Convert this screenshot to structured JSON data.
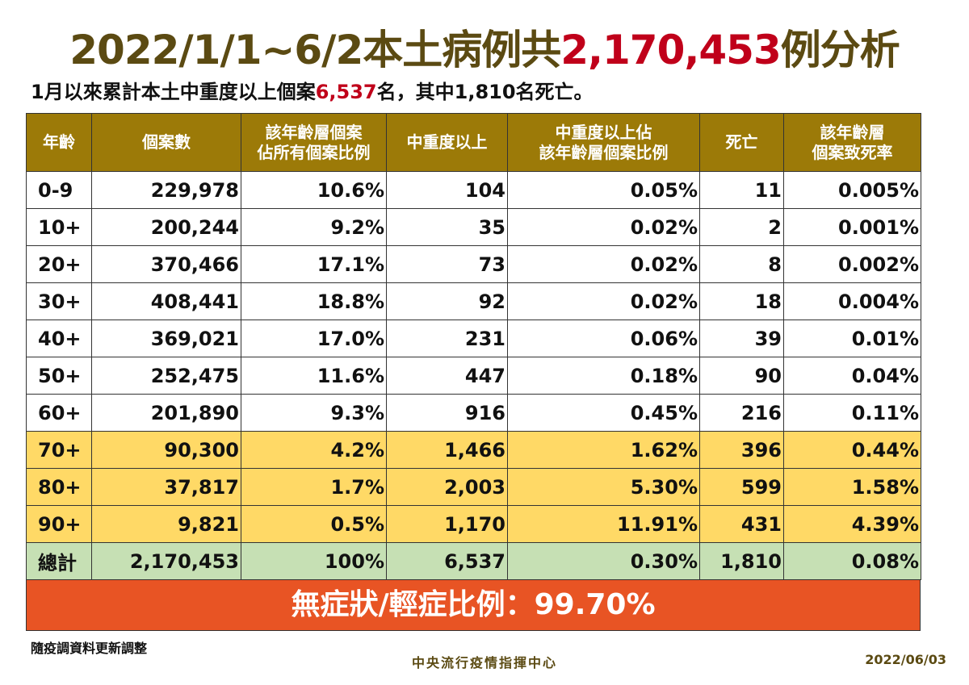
{
  "title": {
    "prefix": "2022/1/1~6/2本土病例共",
    "highlight": "2,170,453",
    "suffix": "例分析"
  },
  "subtitle": {
    "prefix": "1月以來累計本土中重度以上個案",
    "highlight": "6,537",
    "suffix": "名，其中1,810名死亡。"
  },
  "table": {
    "headers": [
      "年齡",
      "個案數",
      "該年齡層個案\n佔所有個案比例",
      "中重度以上",
      "中重度以上佔\n該年齡層個案比例",
      "死亡",
      "該年齡層\n個案致死率"
    ],
    "rows": [
      [
        "0-9",
        "229,978",
        "10.6%",
        "104",
        "0.05%",
        "11",
        "0.005%"
      ],
      [
        "10+",
        "200,244",
        "9.2%",
        "35",
        "0.02%",
        "2",
        "0.001%"
      ],
      [
        "20+",
        "370,466",
        "17.1%",
        "73",
        "0.02%",
        "8",
        "0.002%"
      ],
      [
        "30+",
        "408,441",
        "18.8%",
        "92",
        "0.02%",
        "18",
        "0.004%"
      ],
      [
        "40+",
        "369,021",
        "17.0%",
        "231",
        "0.06%",
        "39",
        "0.01%"
      ],
      [
        "50+",
        "252,475",
        "11.6%",
        "447",
        "0.18%",
        "90",
        "0.04%"
      ],
      [
        "60+",
        "201,890",
        "9.3%",
        "916",
        "0.45%",
        "216",
        "0.11%"
      ],
      [
        "70+",
        "90,300",
        "4.2%",
        "1,466",
        "1.62%",
        "396",
        "0.44%"
      ],
      [
        "80+",
        "37,817",
        "1.7%",
        "2,003",
        "5.30%",
        "599",
        "1.58%"
      ],
      [
        "90+",
        "9,821",
        "0.5%",
        "1,170",
        "11.91%",
        "431",
        "4.39%"
      ]
    ],
    "total": [
      "總計",
      "2,170,453",
      "100%",
      "6,537",
      "0.30%",
      "1,810",
      "0.08%"
    ]
  },
  "band": "無症狀/輕症比例：99.70%",
  "footer": {
    "note": "隨疫調資料更新調整",
    "org": "中央流行疫情指揮中心",
    "date": "2022/06/03"
  },
  "colors": {
    "header": "#9c7a08",
    "elderly_rows": "#ffd966",
    "total_row": "#c6e0b4",
    "band": "#e85424",
    "highlight": "#c0001a"
  }
}
